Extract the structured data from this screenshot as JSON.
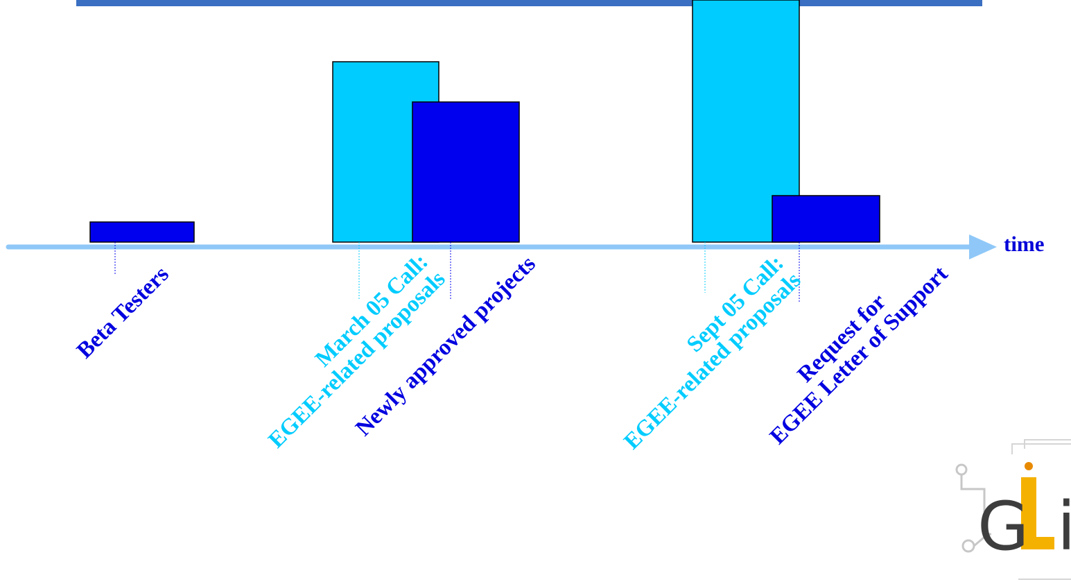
{
  "axis_label": "time",
  "colors": {
    "header_bar": "#3a6fc2",
    "light_bar": "#00ccff",
    "dark_bar": "#0000ee",
    "axis": "#8fc8f8",
    "light_text": "#00ccff",
    "dark_text": "#0000e0"
  },
  "bars": [
    {
      "name": "beta-testers",
      "color": "dark"
    },
    {
      "name": "march-05-proposals",
      "color": "light"
    },
    {
      "name": "newly-approved-projects",
      "color": "dark"
    },
    {
      "name": "sept-05-proposals",
      "color": "light"
    },
    {
      "name": "letter-of-support-requests",
      "color": "dark"
    }
  ],
  "labels": [
    {
      "name": "beta-testers",
      "color": "dark",
      "lines": [
        "Beta Testers"
      ]
    },
    {
      "name": "march-05-call",
      "color": "light",
      "lines": [
        "March 05 Call:",
        "EGEE-related proposals"
      ]
    },
    {
      "name": "newly-approved",
      "color": "dark",
      "lines": [
        "Newly approved projects"
      ]
    },
    {
      "name": "sept-05-call",
      "color": "light",
      "lines": [
        "Sept 05 Call:",
        "EGEE-related proposals"
      ]
    },
    {
      "name": "letter-of-support",
      "color": "dark",
      "lines": [
        "Request for",
        "EGEE Letter of Support"
      ]
    }
  ],
  "logo": {
    "text": "GLite",
    "icon": "glite-logo"
  }
}
